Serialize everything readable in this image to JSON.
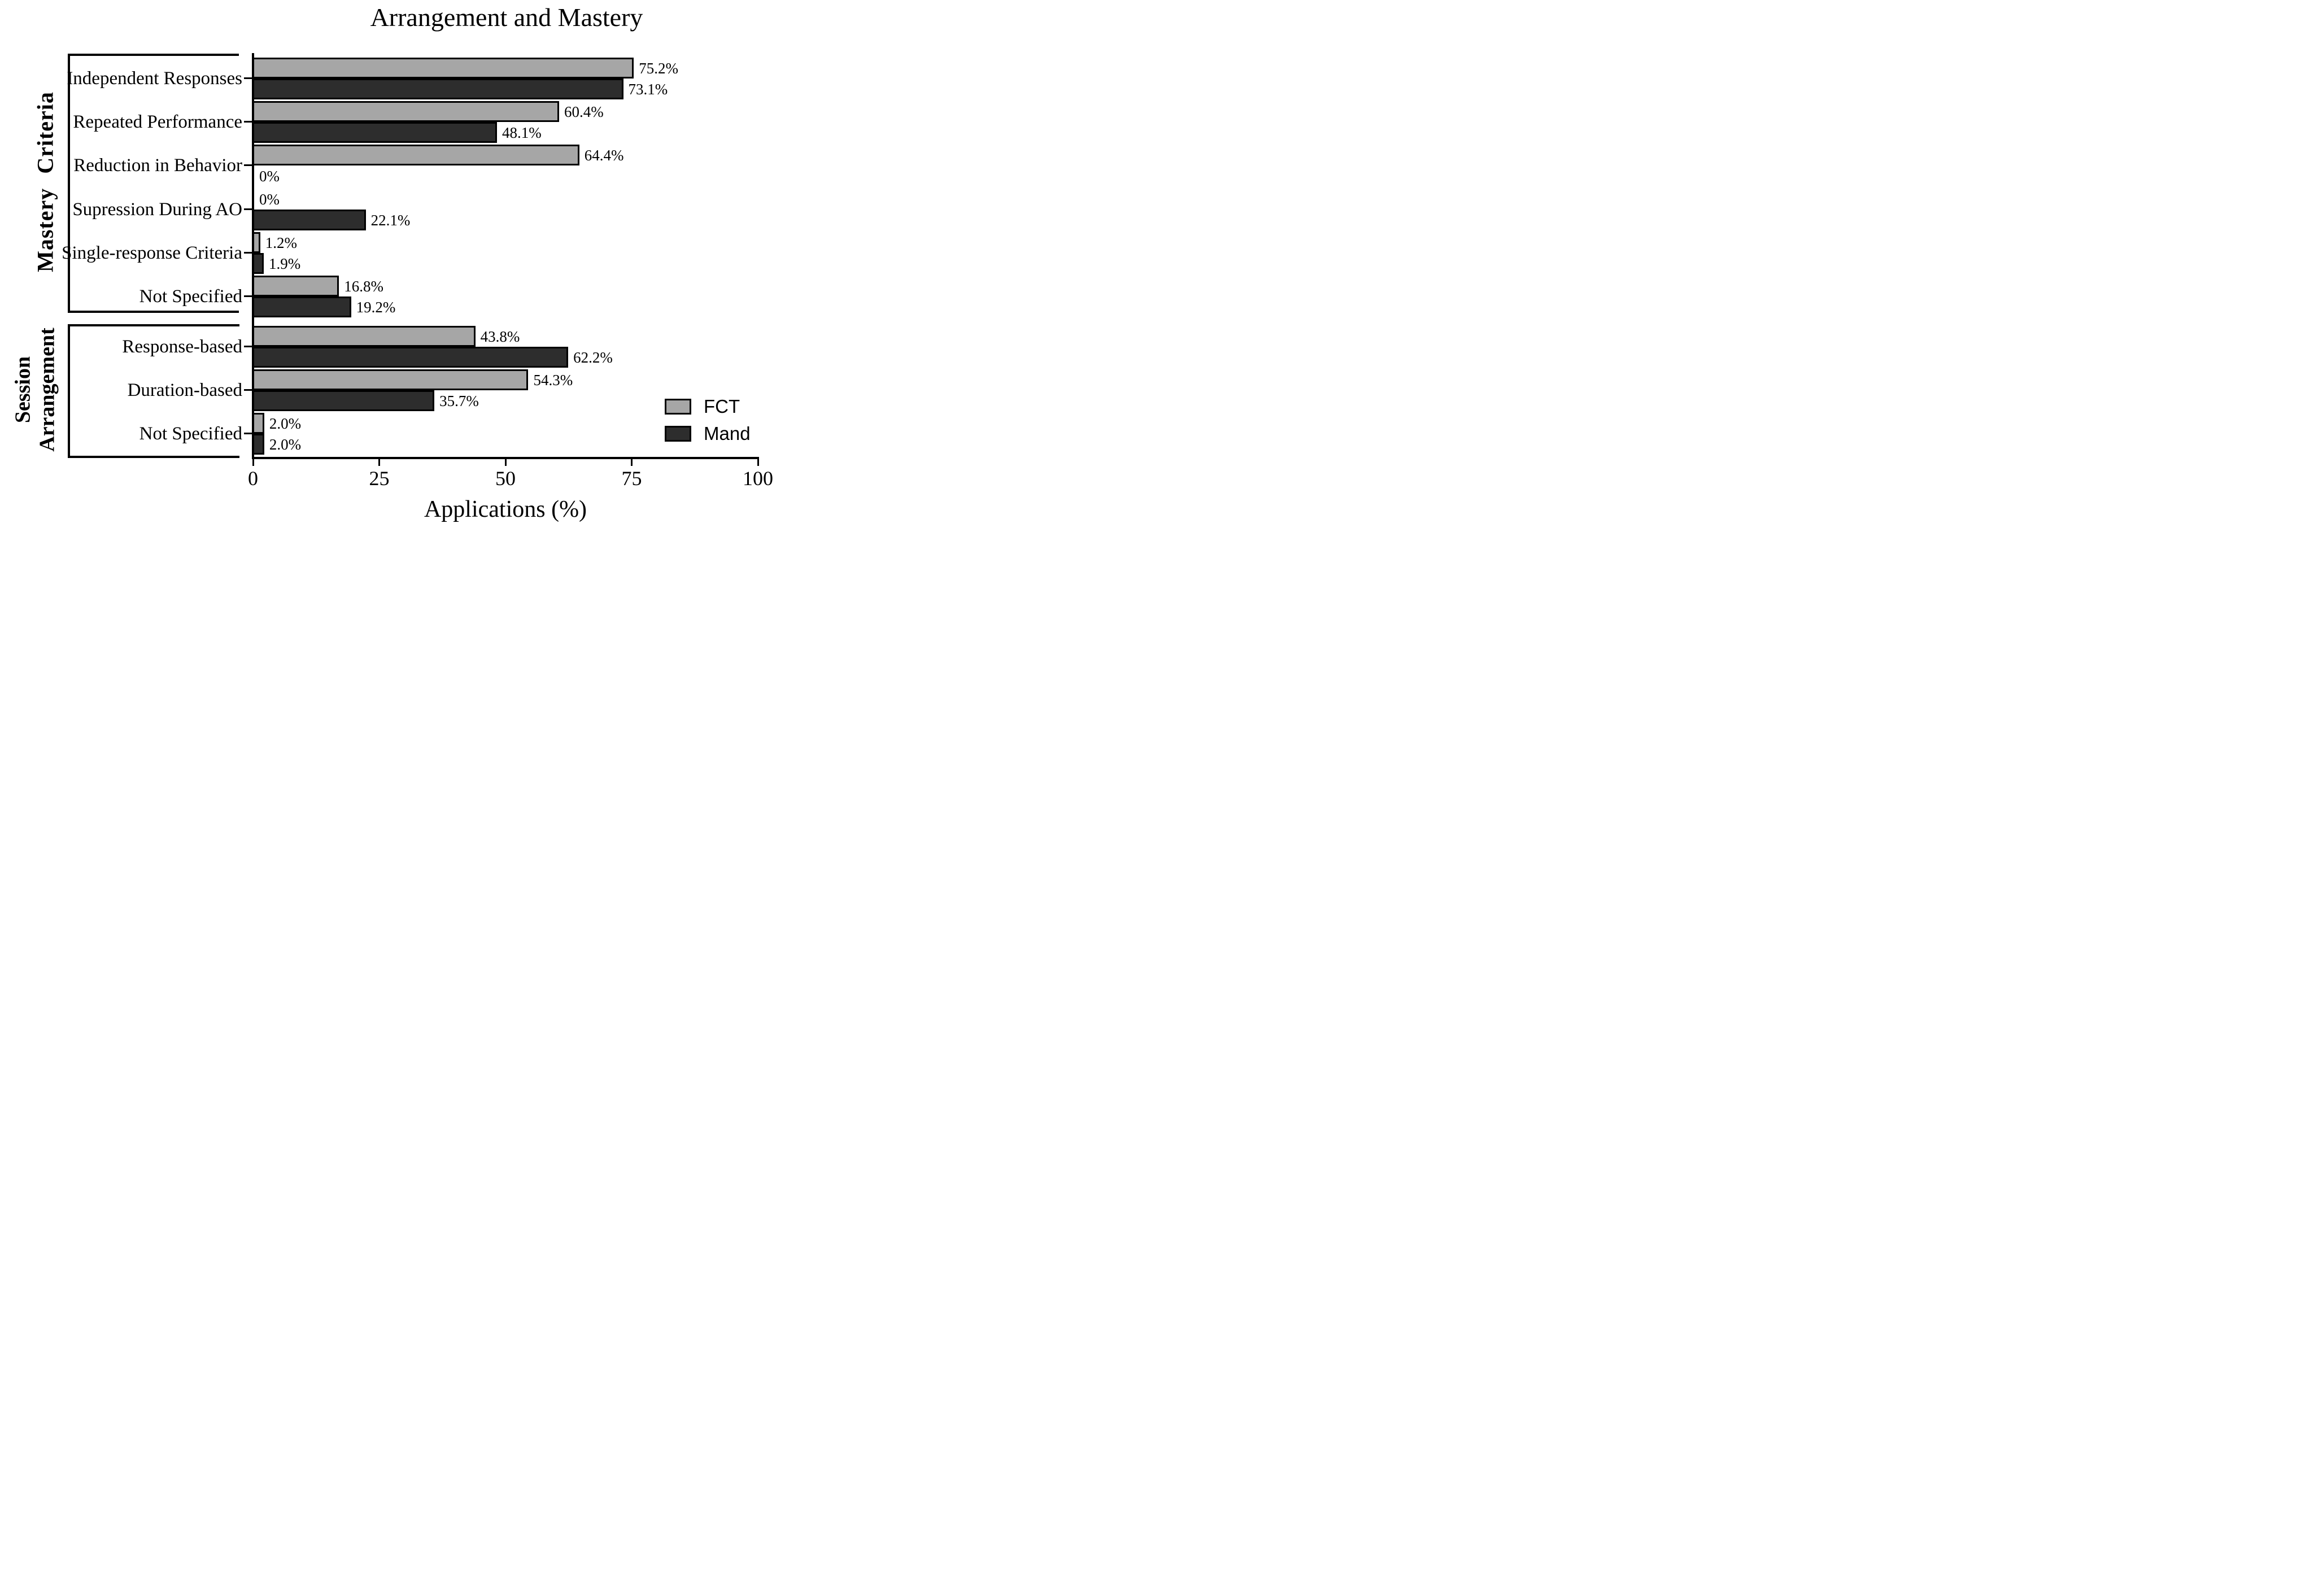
{
  "title": "Arrangement and Mastery",
  "x_axis": {
    "label": "Applications (%)",
    "ticks": [
      "0",
      "25",
      "50",
      "75",
      "100"
    ],
    "tick_values": [
      0,
      25,
      50,
      75,
      100
    ],
    "min": 0,
    "max": 100
  },
  "groups": [
    {
      "label": "Mastery  Criteria",
      "lines": [
        "Mastery  Criteria"
      ]
    },
    {
      "label": "Session Arrangement",
      "lines": [
        "Session",
        "Arrangement"
      ]
    }
  ],
  "legend": [
    {
      "name": "FCT",
      "color": "#a6a6a6"
    },
    {
      "name": "Mand",
      "color": "#2d2d2d"
    }
  ],
  "rows": [
    {
      "group": 0,
      "label": "Independent Responses",
      "fct": 75.2,
      "mand": 73.1,
      "fct_label": "75.2%",
      "mand_label": "73.1%"
    },
    {
      "group": 0,
      "label": "Repeated Performance",
      "fct": 60.4,
      "mand": 48.1,
      "fct_label": "60.4%",
      "mand_label": "48.1%"
    },
    {
      "group": 0,
      "label": "Reduction in Behavior",
      "fct": 64.4,
      "mand": 0,
      "fct_label": "64.4%",
      "mand_label": "0%"
    },
    {
      "group": 0,
      "label": "Supression During AO",
      "fct": 0,
      "mand": 22.1,
      "fct_label": "0%",
      "mand_label": "22.1%"
    },
    {
      "group": 0,
      "label": "Single-response Criteria",
      "fct": 1.2,
      "mand": 1.9,
      "fct_label": "1.2%",
      "mand_label": "1.9%"
    },
    {
      "group": 0,
      "label": "Not Specified",
      "fct": 16.8,
      "mand": 19.2,
      "fct_label": "16.8%",
      "mand_label": "19.2%"
    },
    {
      "group": 1,
      "label": "Response-based",
      "fct": 43.8,
      "mand": 62.2,
      "fct_label": "43.8%",
      "mand_label": "62.2%"
    },
    {
      "group": 1,
      "label": "Duration-based",
      "fct": 54.3,
      "mand": 35.7,
      "fct_label": "54.3%",
      "mand_label": "35.7%"
    },
    {
      "group": 1,
      "label": "Not Specified",
      "fct": 2.0,
      "mand": 2.0,
      "fct_label": "2.0%",
      "mand_label": "2.0%"
    }
  ],
  "chart_data": {
    "type": "bar",
    "orientation": "horizontal",
    "title": "Arrangement and Mastery",
    "xlabel": "Applications (%)",
    "ylabel_groups": [
      "Mastery Criteria",
      "Session Arrangement"
    ],
    "xlim": [
      0,
      100
    ],
    "xticks": [
      0,
      25,
      50,
      75,
      100
    ],
    "grid": false,
    "legend_position": "lower right",
    "categories": [
      "Independent Responses",
      "Repeated Performance",
      "Reduction in Behavior",
      "Supression During AO",
      "Single-response Criteria",
      "Not Specified",
      "Response-based",
      "Duration-based",
      "Not Specified"
    ],
    "category_group": [
      "Mastery Criteria",
      "Mastery Criteria",
      "Mastery Criteria",
      "Mastery Criteria",
      "Mastery Criteria",
      "Mastery Criteria",
      "Session Arrangement",
      "Session Arrangement",
      "Session Arrangement"
    ],
    "series": [
      {
        "name": "FCT",
        "color": "#a6a6a6",
        "values": [
          75.2,
          60.4,
          64.4,
          0,
          1.2,
          16.8,
          43.8,
          54.3,
          2.0
        ],
        "labels": [
          "75.2%",
          "60.4%",
          "64.4%",
          "0%",
          "1.2%",
          "16.8%",
          "43.8%",
          "54.3%",
          "2.0%"
        ]
      },
      {
        "name": "Mand",
        "color": "#2d2d2d",
        "values": [
          73.1,
          48.1,
          0,
          22.1,
          1.9,
          19.2,
          62.2,
          35.7,
          2.0
        ],
        "labels": [
          "73.1%",
          "48.1%",
          "0%",
          "22.1%",
          "1.9%",
          "19.2%",
          "62.2%",
          "35.7%",
          "2.0%"
        ]
      }
    ]
  }
}
